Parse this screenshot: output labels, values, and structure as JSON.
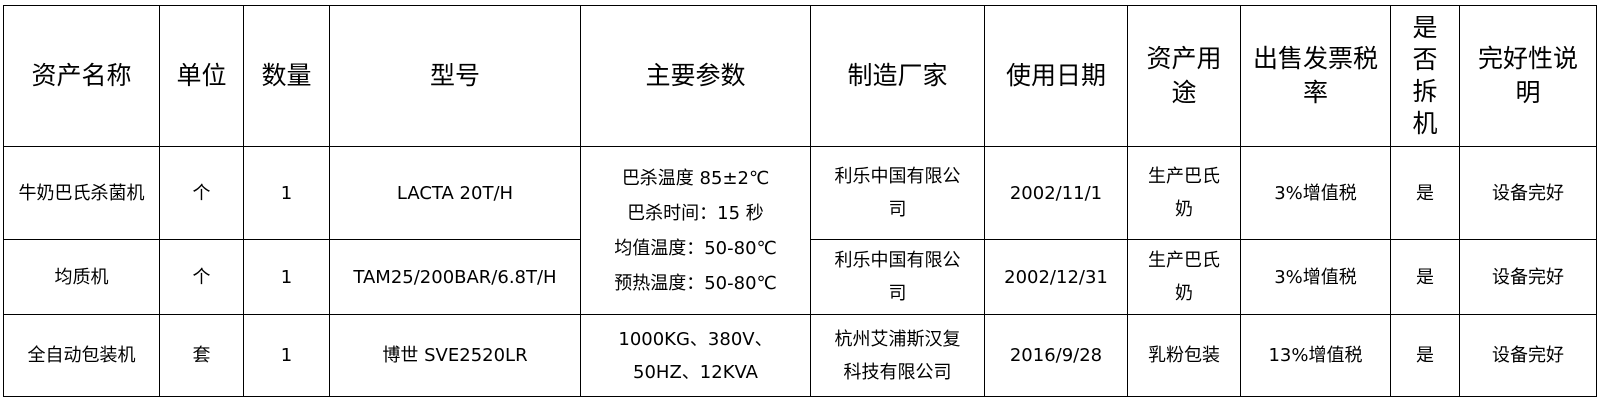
{
  "headers": [
    "资产名称",
    "单位",
    "数量",
    "型号",
    "主要参数",
    "制造厂家",
    "使用日期",
    "资产用途",
    "出售发票税率",
    "是否拆机",
    "完好性说明"
  ],
  "rows": [
    {
      "name": "牛奶巴氏杀菌机",
      "unit": "个",
      "qty": "1",
      "model": "LACTA 20T/H",
      "maker": "利乐中国有限公司",
      "date": "2002/11/1",
      "usage": "生产巴氏奶",
      "tax": "3%增值税",
      "dismantle": "是",
      "condition": "设备完好"
    },
    {
      "name": "均质机",
      "unit": "个",
      "qty": "1",
      "model": "TAM25/200BAR/6.8T/H",
      "maker": "利乐中国有限公司",
      "date": "2002/12/31",
      "usage": "生产巴氏奶",
      "tax": "3%增值税",
      "dismantle": "是",
      "condition": "设备完好"
    },
    {
      "name": "全自动包装机",
      "unit": "套",
      "qty": "1",
      "model": "博世 SVE2520LR",
      "maker": "杭州艾浦斯汉复科技有限公司",
      "date": "2016/9/28",
      "usage": "乳粉包装",
      "tax": "13%增值税",
      "dismantle": "是",
      "condition": "设备完好"
    }
  ],
  "params_merged": [
    "巴杀温度 85±2℃",
    "巴杀时间：15 秒",
    "均值温度：50-80℃",
    "预热温度：50-80℃"
  ],
  "params_row3": "1000KG、380V、50HZ、12KVA"
}
